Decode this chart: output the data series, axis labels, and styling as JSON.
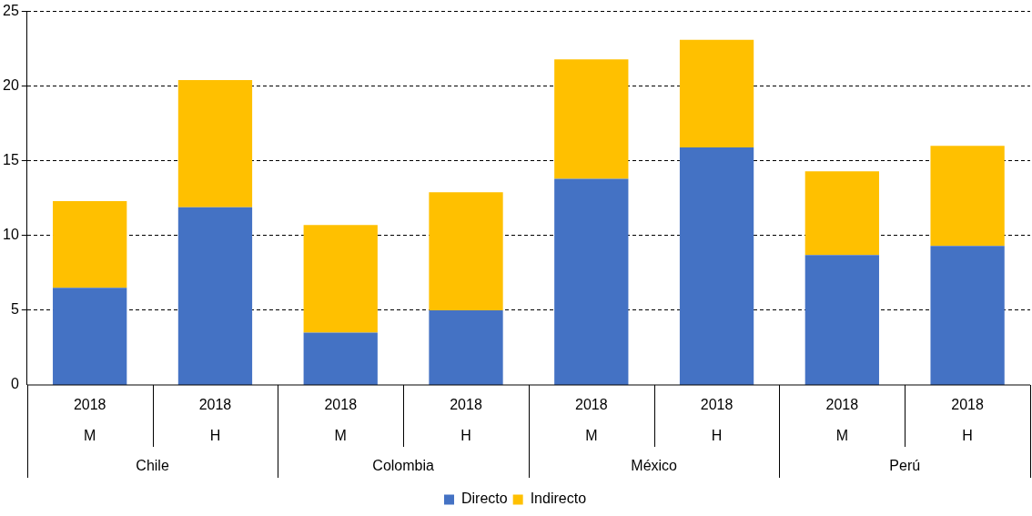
{
  "chart_data": {
    "type": "bar",
    "stacked": true,
    "categories": [
      "2018\nM",
      "2018\nH",
      "2018\nM",
      "2018\nH",
      "2018\nM",
      "2018\nH",
      "2018\nM",
      "2018\nH"
    ],
    "series": [
      {
        "name": "Directo",
        "color": "#4472c4",
        "values": [
          6.5,
          11.9,
          3.5,
          5.0,
          13.8,
          15.9,
          8.7,
          9.3
        ]
      },
      {
        "name": "Indirecto",
        "color": "#ffc000",
        "values": [
          5.8,
          8.5,
          7.2,
          7.9,
          8.0,
          7.2,
          5.6,
          6.7
        ]
      }
    ],
    "ylim": [
      0,
      25
    ],
    "yticks": [
      0,
      5,
      10,
      15,
      20,
      25
    ],
    "grid": "y",
    "legend": "bottom",
    "annotations": [
      "Chile",
      "Colombia",
      "México",
      "Perú"
    ]
  }
}
